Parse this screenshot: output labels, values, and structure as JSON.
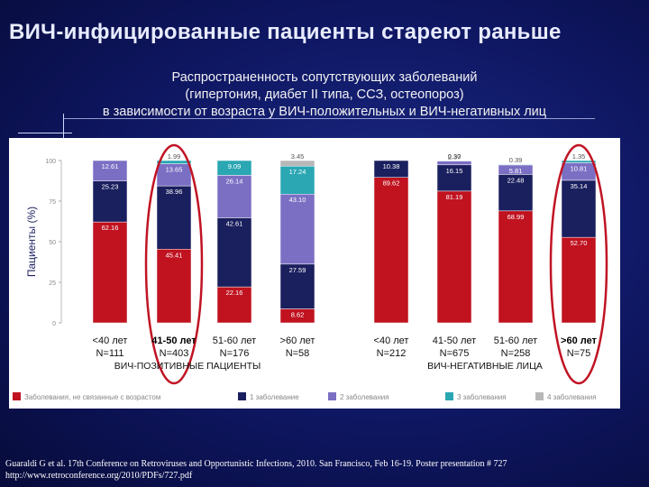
{
  "slide": {
    "title": "ВИЧ-инфицированные пациенты стареют раньше",
    "subtitle_lines": [
      "Распространенность сопутствующих заболеваний",
      "(гипертония, диабет II типа, ССЗ, остеопороз)",
      "в зависимости от возраста у ВИЧ-положительных и ВИЧ-негативных лиц"
    ],
    "citation_lines": [
      "Guaraldi G et al. 17th Conference on Retroviruses and Opportunistic Infections, 2010. San Francisco, Feb 16-19. Poster presentation # 727",
      "http://www.retroconference.org/2010/PDFs/727.pdf"
    ]
  },
  "chart_data": {
    "type": "bar",
    "stacked": true,
    "ylabel": "Пациенты (%)",
    "ylim": [
      0,
      100
    ],
    "yticks": [
      0,
      25,
      50,
      75,
      100
    ],
    "series": [
      {
        "name": "Заболевания, не связанные с возрастом",
        "color": "#c0121f"
      },
      {
        "name": "1 заболевание",
        "color": "#1a1f5e"
      },
      {
        "name": "2 заболевания",
        "color": "#7b6fc4"
      },
      {
        "name": "3 заболевания",
        "color": "#2aa7b3"
      },
      {
        "name": "4 заболевания",
        "color": "#b8b8b8"
      }
    ],
    "bars": [
      {
        "age": "<40 лет",
        "n": "N=111",
        "group": "pos",
        "values": [
          62.16,
          25.23,
          12.61,
          0,
          0
        ],
        "labels": [
          "62.16",
          "25.23",
          "12.61",
          "",
          ""
        ],
        "highlighted": false
      },
      {
        "age": "41-50 лет",
        "n": "N=403",
        "group": "pos",
        "values": [
          45.41,
          38.96,
          13.65,
          1.99,
          0
        ],
        "labels": [
          "45.41",
          "38.96",
          "13.65",
          "1.99",
          ""
        ],
        "highlighted": true
      },
      {
        "age": "51-60 лет",
        "n": "N=176",
        "group": "pos",
        "values": [
          22.16,
          42.61,
          26.14,
          9.09,
          0
        ],
        "labels": [
          "22.16",
          "42.61",
          "26.14",
          "9.09",
          ""
        ],
        "highlighted": false
      },
      {
        "age": ">60 лет",
        "n": "N=58",
        "group": "pos",
        "values": [
          8.62,
          27.59,
          43.1,
          17.24,
          3.45
        ],
        "labels": [
          "8.62",
          "27.59",
          "43.10",
          "17.24",
          "3.45"
        ],
        "highlighted": false
      },
      {
        "age": "<40 лет",
        "n": "N=212",
        "group": "neg",
        "values": [
          89.62,
          10.38,
          0,
          0,
          0
        ],
        "labels": [
          "89.62",
          "10.38",
          "",
          "",
          ""
        ],
        "highlighted": false
      },
      {
        "age": "41-50 лет",
        "n": "N=675",
        "group": "neg",
        "values": [
          81.19,
          16.15,
          2.37,
          0.3,
          0
        ],
        "labels": [
          "81.19",
          "16.15",
          "2.37",
          "0.30",
          ""
        ],
        "highlighted": false
      },
      {
        "age": "51-60 лет",
        "n": "N=258",
        "group": "neg",
        "values": [
          68.99,
          22.48,
          5.81,
          0.39,
          0
        ],
        "labels": [
          "68.99",
          "22.48",
          "5.81",
          "0.39",
          ""
        ],
        "highlighted": false
      },
      {
        "age": ">60 лет",
        "n": "N=75",
        "group": "neg",
        "values": [
          52.7,
          35.14,
          10.81,
          1.35,
          0
        ],
        "labels": [
          "52.70",
          "35.14",
          "10.81",
          "1.35",
          ""
        ],
        "highlighted": true
      }
    ],
    "group_labels": {
      "pos": "ВИЧ-ПОЗИТИВНЫЕ ПАЦИЕНТЫ",
      "neg": "ВИЧ-НЕГАТИВНЫЕ ЛИЦА"
    }
  }
}
